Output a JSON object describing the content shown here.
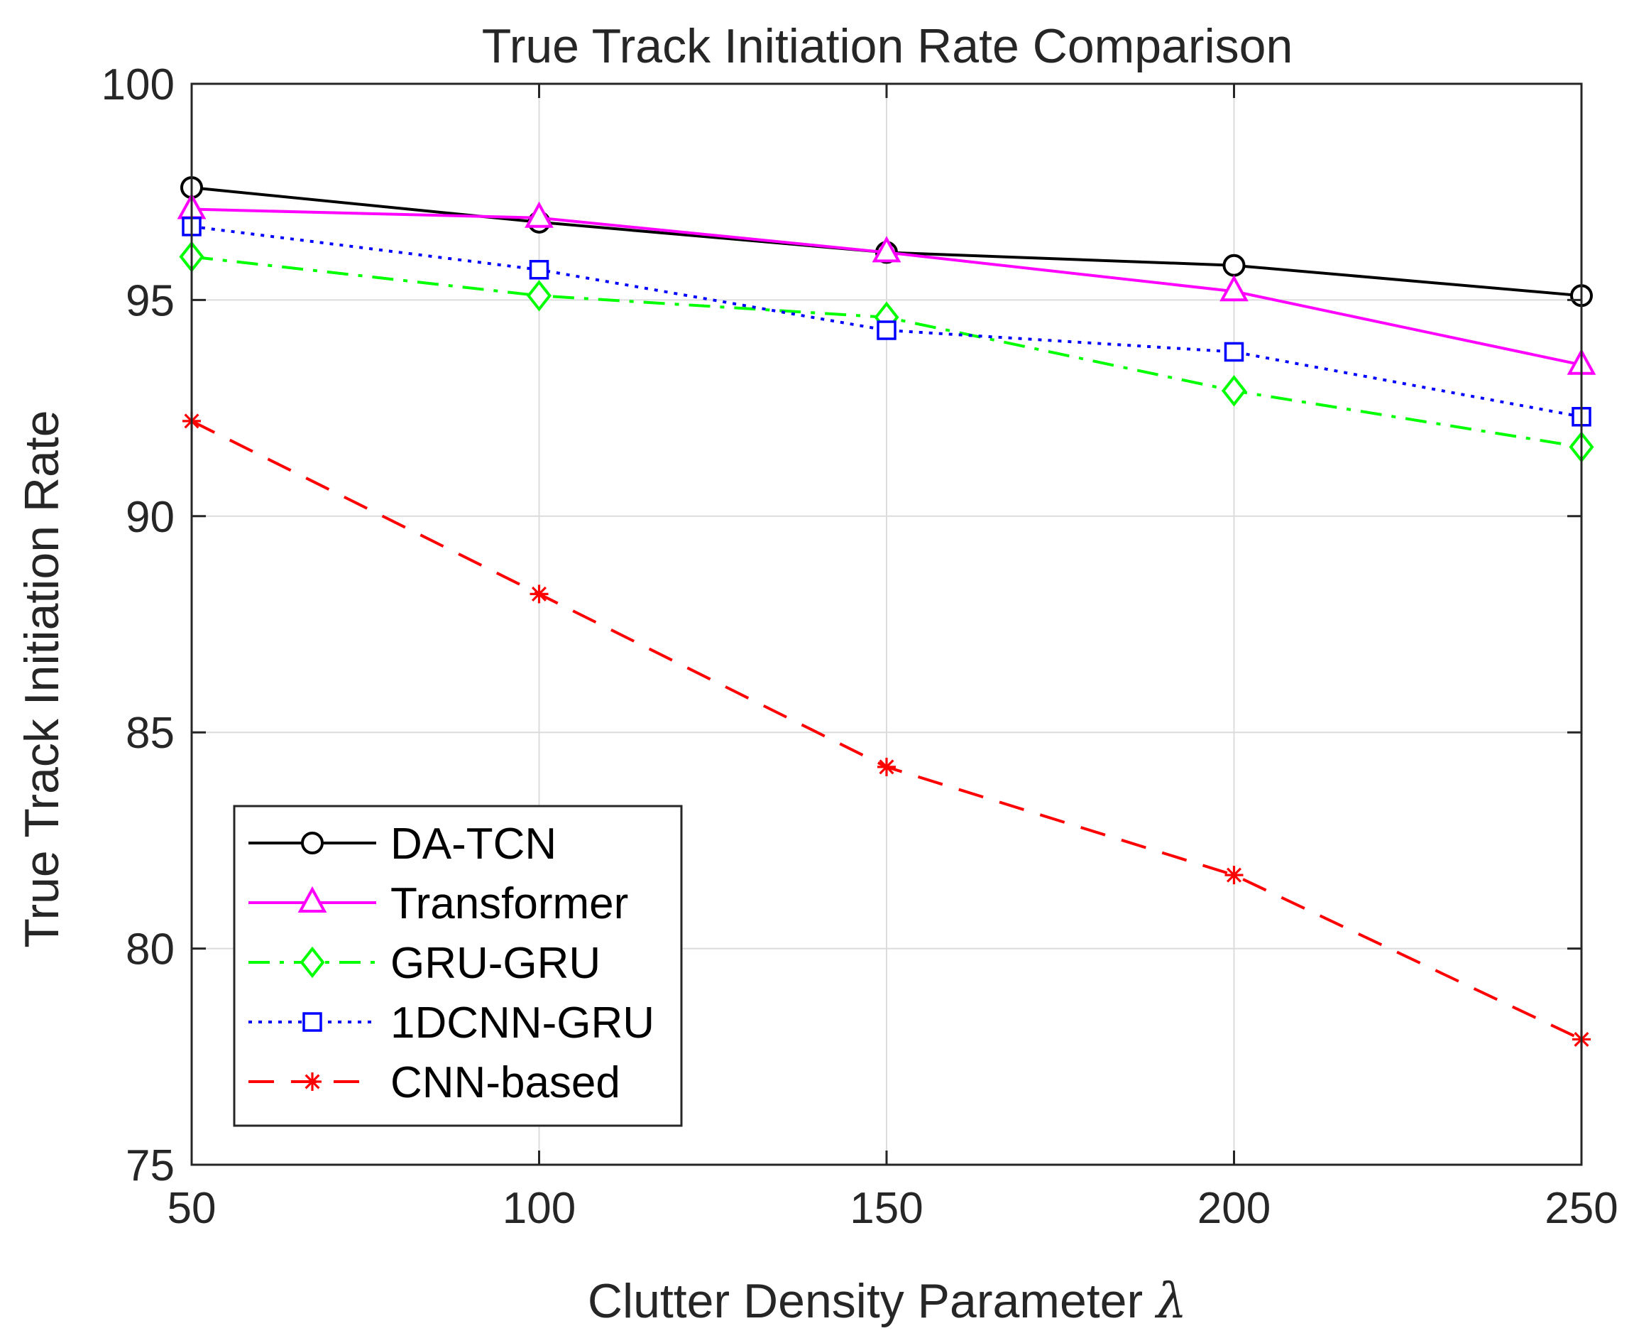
{
  "chart_data": {
    "type": "line",
    "title": "True Track Initiation Rate Comparison",
    "xlabel": "Clutter Density Parameter",
    "xlabel_symbol": "λ",
    "ylabel": "True Track Initiation Rate",
    "x": [
      50,
      100,
      150,
      200,
      250
    ],
    "xlim": [
      50,
      250
    ],
    "ylim": [
      75,
      100
    ],
    "xticks": [
      "50",
      "100",
      "150",
      "200",
      "250"
    ],
    "yticks": [
      "75",
      "80",
      "85",
      "90",
      "95",
      "100"
    ],
    "grid": true,
    "legend_position": "bottom-left",
    "series": [
      {
        "name": "DA-TCN",
        "values": [
          97.6,
          96.8,
          96.1,
          95.8,
          95.1
        ],
        "color": "#000000",
        "marker": "circle",
        "dash": "solid"
      },
      {
        "name": "Transformer",
        "values": [
          97.1,
          96.9,
          96.1,
          95.2,
          93.5
        ],
        "color": "#ff00ff",
        "marker": "triangle",
        "dash": "solid"
      },
      {
        "name": "GRU-GRU",
        "values": [
          96.0,
          95.1,
          94.6,
          92.9,
          91.6
        ],
        "color": "#00ff00",
        "marker": "diamond",
        "dash": "dashdot"
      },
      {
        "name": "1DCNN-GRU",
        "values": [
          96.7,
          95.7,
          94.3,
          93.8,
          92.3
        ],
        "color": "#0000ff",
        "marker": "square",
        "dash": "dotted"
      },
      {
        "name": "CNN-based",
        "values": [
          92.2,
          88.2,
          84.2,
          81.7,
          77.9
        ],
        "color": "#ff0000",
        "marker": "asterisk",
        "dash": "dashed"
      }
    ]
  }
}
